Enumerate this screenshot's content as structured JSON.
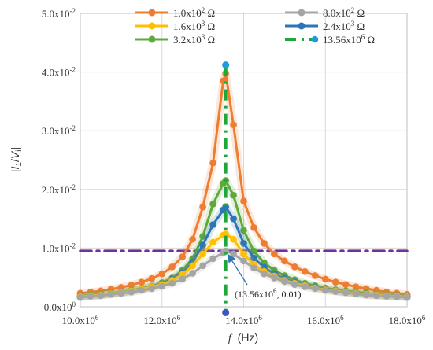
{
  "chart_data": {
    "type": "line",
    "xlabel_var": "f",
    "xlabel_unit": "(Hz)",
    "ylabel_parts": [
      "|",
      "I",
      "1",
      "/",
      "V",
      "i",
      "|"
    ],
    "xlim": [
      10000000,
      18000000
    ],
    "ylim": [
      0,
      0.05
    ],
    "grid": true,
    "legend_position": "top",
    "x_ticks": [
      {
        "value": 10000000,
        "mantissa": "10.0x10",
        "exp": "6"
      },
      {
        "value": 12000000,
        "mantissa": "12.0x10",
        "exp": "6"
      },
      {
        "value": 14000000,
        "mantissa": "14.0x10",
        "exp": "6"
      },
      {
        "value": 16000000,
        "mantissa": "16.0x10",
        "exp": "6"
      },
      {
        "value": 18000000,
        "mantissa": "18.0x10",
        "exp": "6"
      }
    ],
    "y_ticks": [
      {
        "value": 0,
        "mantissa": "0.0x10",
        "exp": "0"
      },
      {
        "value": 0.01,
        "mantissa": "1.0x10",
        "exp": "-2"
      },
      {
        "value": 0.02,
        "mantissa": "2.0x10",
        "exp": "-2"
      },
      {
        "value": 0.03,
        "mantissa": "3.0x10",
        "exp": "-2"
      },
      {
        "value": 0.04,
        "mantissa": "4.0x10",
        "exp": "-2"
      },
      {
        "value": 0.05,
        "mantissa": "5.0x10",
        "exp": "-2"
      }
    ],
    "x": [
      10000000,
      10250000,
      10500000,
      10750000,
      11000000,
      11250000,
      11500000,
      11750000,
      12000000,
      12250000,
      12500000,
      12750000,
      13000000,
      13250000,
      13500000,
      13560000,
      13750000,
      14000000,
      14250000,
      14500000,
      14750000,
      15000000,
      15250000,
      15500000,
      15750000,
      16000000,
      16250000,
      16500000,
      16750000,
      17000000,
      17250000,
      17500000,
      17750000,
      18000000
    ],
    "series": [
      {
        "name_mantissa": "1.0x10",
        "name_exp": "2",
        "name_unit": "Ω",
        "color": "#ED7D31",
        "style": "solid",
        "values": [
          0.0023,
          0.0025,
          0.0027,
          0.003,
          0.0033,
          0.0037,
          0.0042,
          0.0048,
          0.0056,
          0.0068,
          0.0085,
          0.0115,
          0.017,
          0.0245,
          0.0385,
          0.0398,
          0.031,
          0.018,
          0.0135,
          0.0108,
          0.009,
          0.0078,
          0.0068,
          0.006,
          0.0053,
          0.0047,
          0.0042,
          0.0038,
          0.0034,
          0.0031,
          0.0028,
          0.0025,
          0.0023,
          0.0021
        ]
      },
      {
        "name_mantissa": "8.0x10",
        "name_exp": "2",
        "name_unit": "Ω",
        "color": "#A5A5A5",
        "style": "solid",
        "values": [
          0.0016,
          0.0018,
          0.0019,
          0.0021,
          0.0023,
          0.0025,
          0.0028,
          0.0031,
          0.0035,
          0.004,
          0.0047,
          0.0057,
          0.007,
          0.0082,
          0.0092,
          0.0095,
          0.009,
          0.0078,
          0.0066,
          0.0056,
          0.0049,
          0.0043,
          0.0038,
          0.0034,
          0.0031,
          0.0028,
          0.0026,
          0.0024,
          0.0022,
          0.002,
          0.0019,
          0.0018,
          0.0017,
          0.0016
        ]
      },
      {
        "name_mantissa": "1.6x10",
        "name_exp": "3",
        "name_unit": "Ω",
        "color": "#FFC000",
        "style": "solid",
        "values": [
          0.0017,
          0.0019,
          0.002,
          0.0022,
          0.0024,
          0.0027,
          0.003,
          0.0034,
          0.0038,
          0.0045,
          0.0055,
          0.007,
          0.009,
          0.011,
          0.0122,
          0.0124,
          0.0115,
          0.009,
          0.0072,
          0.006,
          0.0052,
          0.0045,
          0.004,
          0.0036,
          0.0032,
          0.0029,
          0.0027,
          0.0025,
          0.0023,
          0.0021,
          0.002,
          0.0019,
          0.0018,
          0.0017
        ]
      },
      {
        "name_mantissa": "2.4x10",
        "name_exp": "3",
        "name_unit": "Ω",
        "color": "#2E75B6",
        "style": "solid",
        "values": [
          0.0017,
          0.0019,
          0.002,
          0.0022,
          0.0024,
          0.0027,
          0.003,
          0.0034,
          0.0039,
          0.0047,
          0.0058,
          0.0076,
          0.0105,
          0.014,
          0.0165,
          0.017,
          0.015,
          0.0108,
          0.0083,
          0.0067,
          0.0056,
          0.0048,
          0.0042,
          0.0037,
          0.0033,
          0.003,
          0.0027,
          0.0025,
          0.0023,
          0.0021,
          0.002,
          0.0019,
          0.0018,
          0.0017
        ]
      },
      {
        "name_mantissa": "3.2x10",
        "name_exp": "3",
        "name_unit": "Ω",
        "color": "#5FA83A",
        "style": "solid",
        "values": [
          0.0018,
          0.002,
          0.0021,
          0.0023,
          0.0025,
          0.0028,
          0.0031,
          0.0035,
          0.0041,
          0.0049,
          0.0062,
          0.0082,
          0.012,
          0.0175,
          0.021,
          0.0215,
          0.019,
          0.013,
          0.0095,
          0.0075,
          0.0062,
          0.0053,
          0.0046,
          0.004,
          0.0036,
          0.0032,
          0.0029,
          0.0027,
          0.0025,
          0.0023,
          0.0021,
          0.002,
          0.0019,
          0.0018
        ]
      },
      {
        "name_mantissa": "13.56x10",
        "name_exp": "6",
        "name_unit": "Ω",
        "color": "#1EA83A",
        "style": "dashdot-vertical",
        "x_line": 13560000,
        "y_range": [
          -0.001,
          0.0412
        ]
      }
    ],
    "extra_series": [
      {
        "color": "#7030A0",
        "style": "dashdot-horizontal",
        "y_line": 0.0095
      }
    ],
    "annotation": {
      "text_open": "(13.56x10",
      "text_exp": "6",
      "text_close": ", 0.01)",
      "x": 13560000,
      "y": 0.0095
    }
  }
}
